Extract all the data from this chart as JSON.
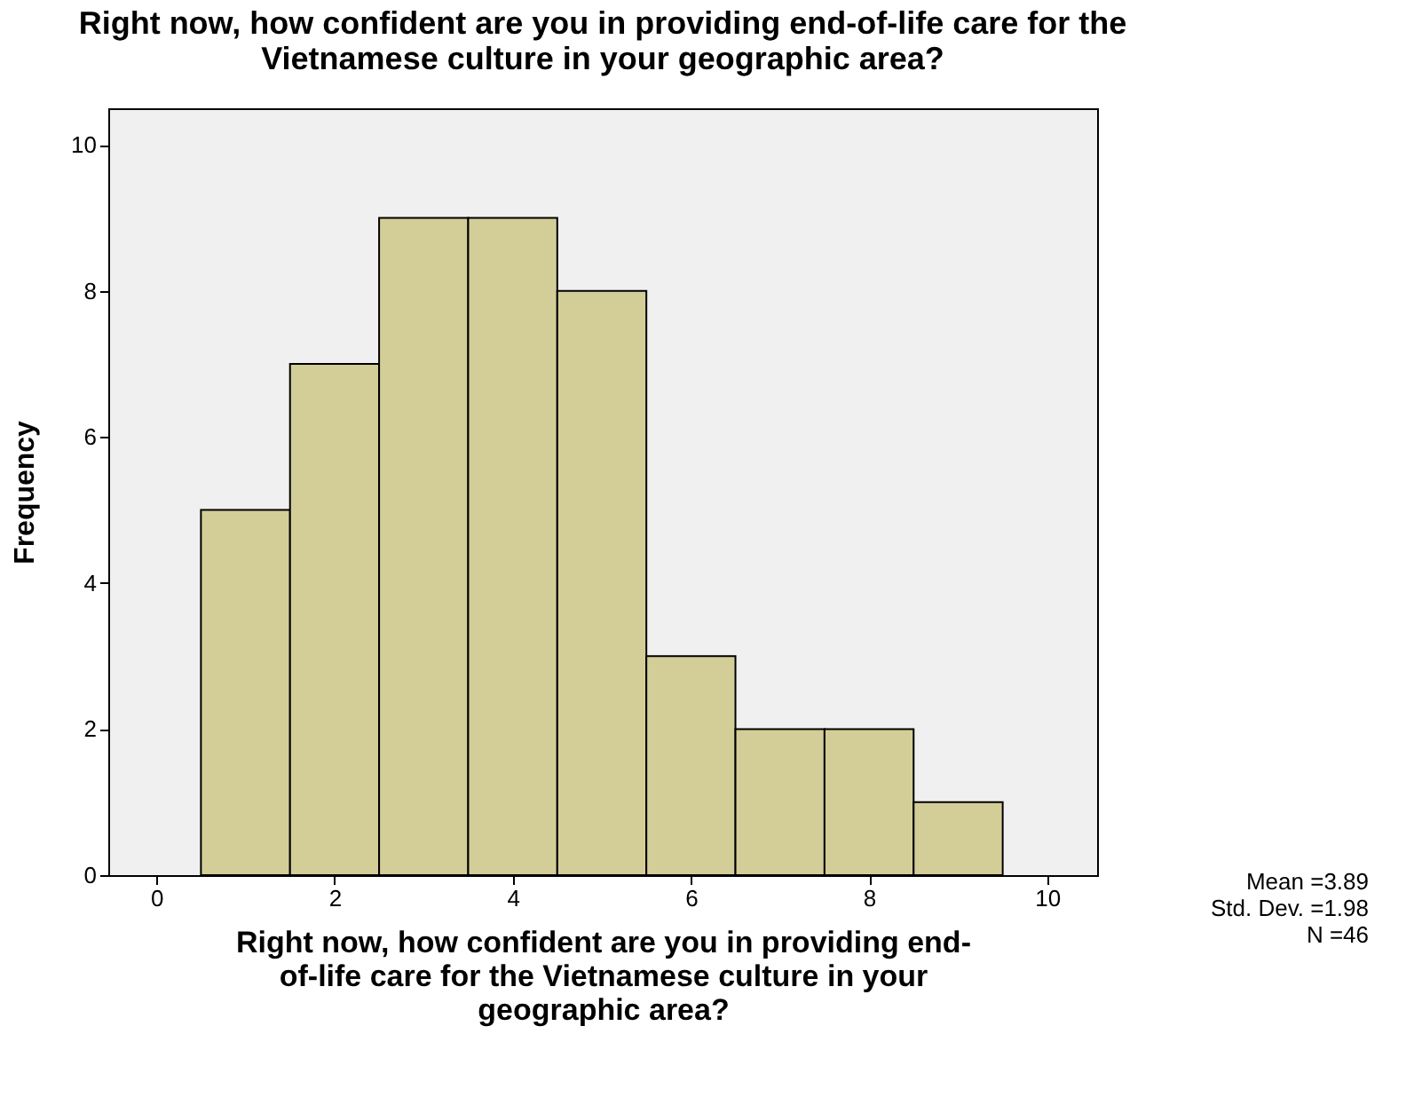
{
  "chart_data": {
    "type": "histogram",
    "title": "Right now, how confident are you in providing end-of-life care for the Vietnamese culture in your geographic area?",
    "xlabel": "Right now, how confident are you in providing end-of-life care for the Vietnamese culture in your geographic area?",
    "ylabel": "Frequency",
    "bins": [
      0.5,
      1.5,
      2.5,
      3.5,
      4.5,
      5.5,
      6.5,
      7.5,
      8.5,
      9.5
    ],
    "values": [
      5,
      7,
      9,
      9,
      8,
      3,
      2,
      2,
      1
    ],
    "color": "#d3ce98",
    "xlim": [
      -0.54,
      10.56
    ],
    "xticks": [
      0,
      2,
      4,
      6,
      8,
      10
    ],
    "ylim": [
      0,
      10.5
    ],
    "yticks": [
      0,
      2,
      4,
      6,
      8,
      10
    ],
    "grid": false,
    "annotations": [
      "Mean =3.89",
      "Std. Dev. =1.98",
      "N =46"
    ]
  }
}
